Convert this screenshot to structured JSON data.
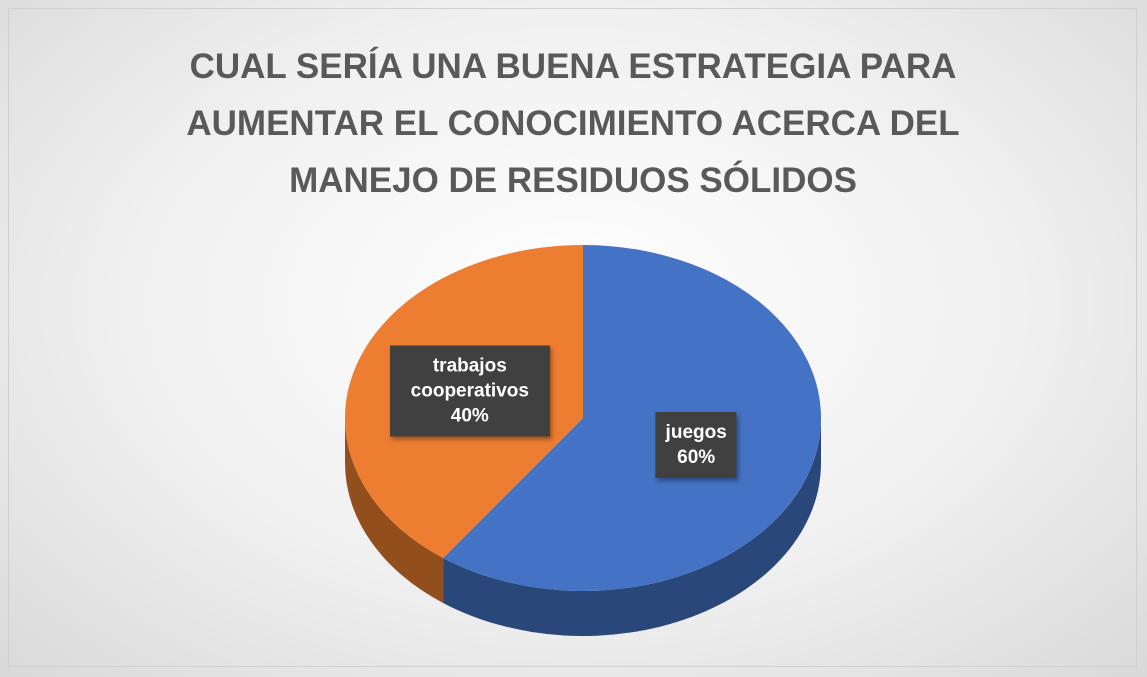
{
  "chart_data": {
    "type": "pie",
    "title": "CUAL SERÍA UNA BUENA ESTRATEGIA PARA AUMENTAR EL CONOCIMIENTO ACERCA DEL MANEJO DE RESIDUOS SÓLIDOS",
    "categories": [
      "juegos",
      "trabajos cooperativos"
    ],
    "values": [
      60,
      40
    ],
    "value_labels": [
      "60%",
      "40%"
    ],
    "colors": [
      "#4472c4",
      "#ed7d31"
    ]
  }
}
